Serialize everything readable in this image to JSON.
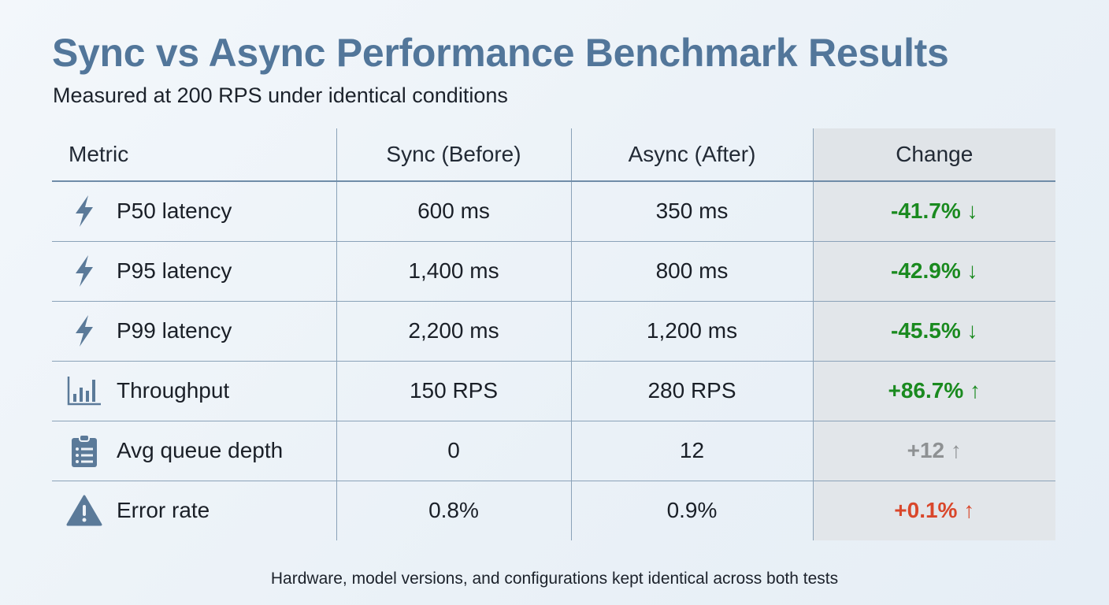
{
  "title": "Sync vs Async Performance Benchmark Results",
  "subtitle": "Measured at 200 RPS under identical conditions",
  "table": {
    "headers": [
      "Metric",
      "Sync (Before)",
      "Async (After)",
      "Change"
    ],
    "rows": [
      {
        "icon": "lightning-icon",
        "metric": "P50 latency",
        "sync": "600 ms",
        "async": "350 ms",
        "change": "-41.7% ↓",
        "color": "#1a8a1f"
      },
      {
        "icon": "lightning-icon",
        "metric": "P95 latency",
        "sync": "1,400 ms",
        "async": "800 ms",
        "change": "-42.9% ↓",
        "color": "#1a8a1f"
      },
      {
        "icon": "lightning-icon",
        "metric": "P99 latency",
        "sync": "2,200 ms",
        "async": "1,200 ms",
        "change": "-45.5% ↓",
        "color": "#1a8a1f"
      },
      {
        "icon": "bar-chart-icon",
        "metric": "Throughput",
        "sync": "150 RPS",
        "async": "280 RPS",
        "change": "+86.7% ↑",
        "color": "#1a8a1f"
      },
      {
        "icon": "clipboard-icon",
        "metric": "Avg queue depth",
        "sync": "0",
        "async": "12",
        "change": "+12 ↑",
        "color": "#8e9193"
      },
      {
        "icon": "warning-icon",
        "metric": "Error rate",
        "sync": "0.8%",
        "async": "0.9%",
        "change": "+0.1% ↑",
        "color": "#d9472b"
      }
    ]
  },
  "footer": "Hardware, model versions, and configurations kept identical across both tests",
  "colors": {
    "title": "#52769a",
    "icon": "#5b7a99",
    "improvement": "#1a8a1f",
    "neutral": "#8e9193",
    "regression": "#d9472b"
  }
}
